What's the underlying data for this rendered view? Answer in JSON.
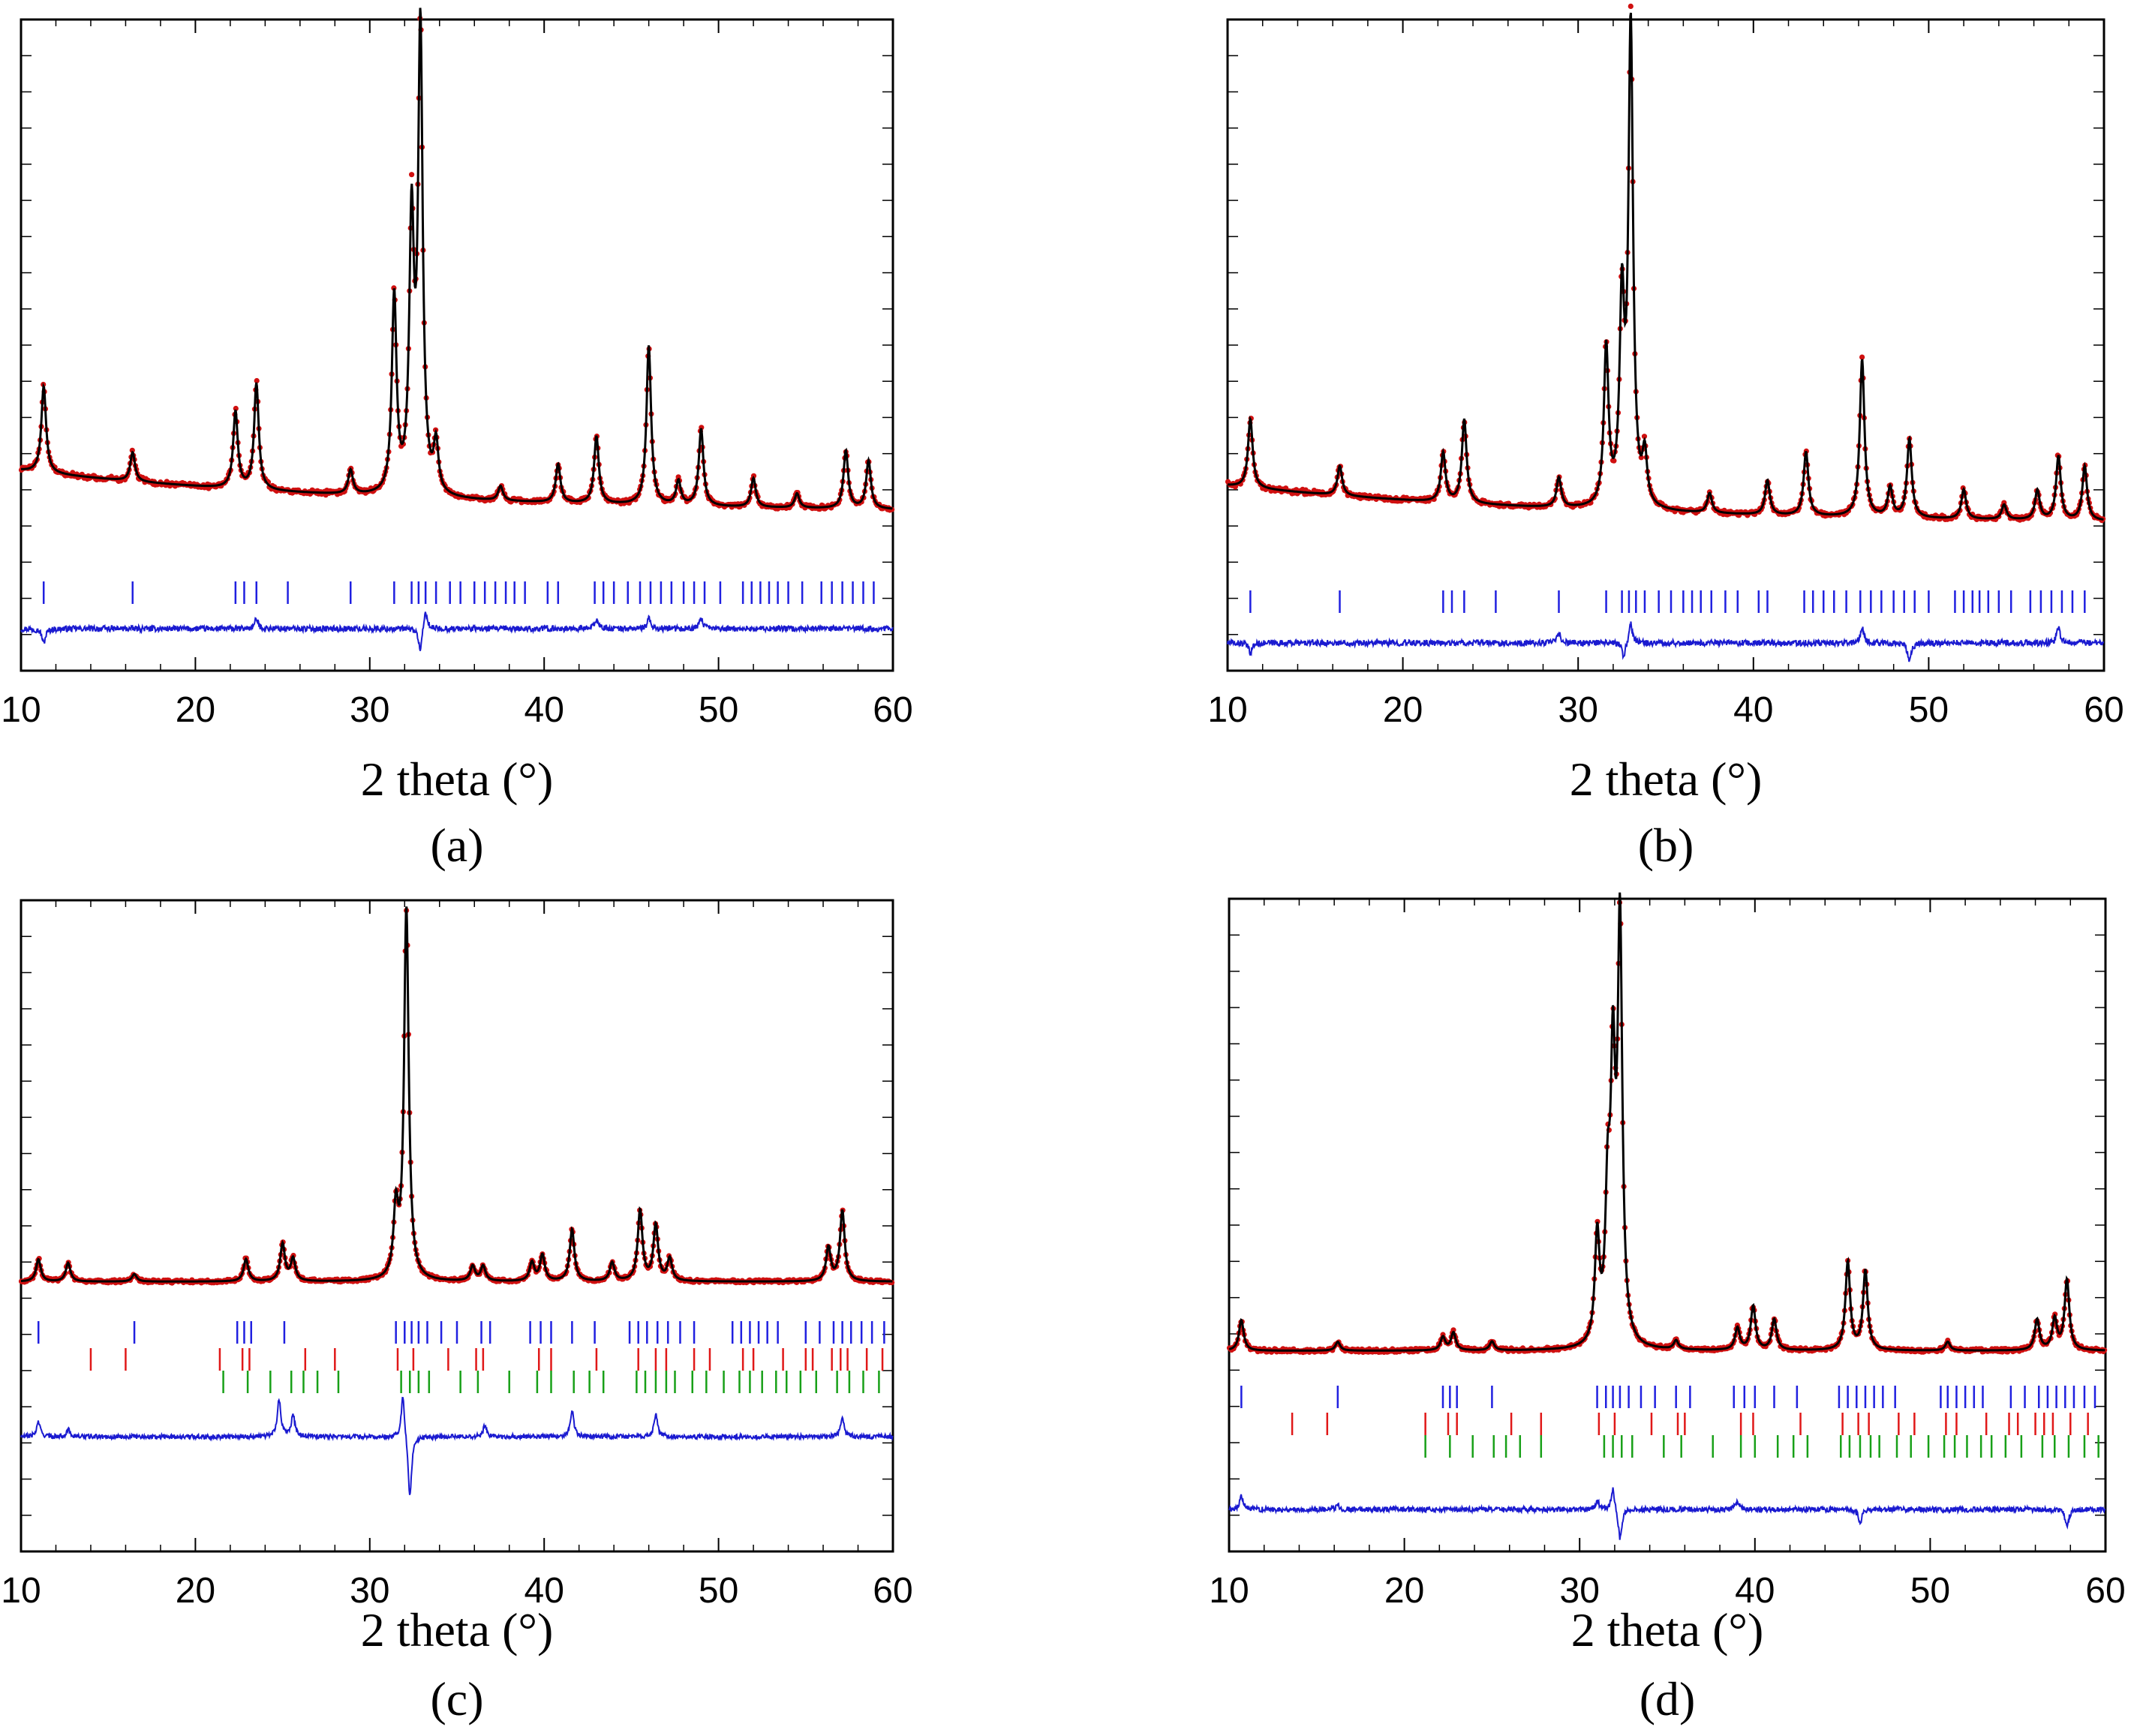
{
  "figure": {
    "colors": {
      "observed": "#d01010",
      "calculated": "#000000",
      "difference": "#1a1ad0",
      "phase1": "#2020e0",
      "phase2": "#e01818",
      "phase3": "#18a018"
    }
  },
  "chart_data": [
    {
      "panel": "a",
      "caption": "(a)",
      "type": "line",
      "xlabel": "2 theta (°)",
      "ylabel": "",
      "xlim": [
        10,
        60
      ],
      "xticks": [
        10,
        20,
        30,
        40,
        50,
        60
      ],
      "ylim": [
        -0.32,
        1.03
      ],
      "background": 0.09,
      "peaks": [
        {
          "x": 11.3,
          "h": 0.18
        },
        {
          "x": 16.4,
          "h": 0.06
        },
        {
          "x": 22.3,
          "h": 0.16
        },
        {
          "x": 23.5,
          "h": 0.22
        },
        {
          "x": 28.9,
          "h": 0.05
        },
        {
          "x": 31.4,
          "h": 0.41
        },
        {
          "x": 32.4,
          "h": 0.55
        },
        {
          "x": 32.9,
          "h": 0.96
        },
        {
          "x": 33.8,
          "h": 0.1
        },
        {
          "x": 37.5,
          "h": 0.03
        },
        {
          "x": 40.8,
          "h": 0.08
        },
        {
          "x": 43.0,
          "h": 0.14
        },
        {
          "x": 46.0,
          "h": 0.33
        },
        {
          "x": 47.7,
          "h": 0.05
        },
        {
          "x": 49.0,
          "h": 0.16
        },
        {
          "x": 52.0,
          "h": 0.06
        },
        {
          "x": 54.5,
          "h": 0.03
        },
        {
          "x": 57.3,
          "h": 0.12
        },
        {
          "x": 58.6,
          "h": 0.1
        }
      ],
      "reflection_rows": [
        {
          "phase": "phase1",
          "positions": [
            11.3,
            16.4,
            22.3,
            22.8,
            23.5,
            25.3,
            28.9,
            31.4,
            32.4,
            32.8,
            33.2,
            33.8,
            34.6,
            35.2,
            36.0,
            36.6,
            37.2,
            37.8,
            38.3,
            38.9,
            40.2,
            40.8,
            42.9,
            43.4,
            44.0,
            44.8,
            45.5,
            46.1,
            46.7,
            47.3,
            48.0,
            48.6,
            49.2,
            50.1,
            51.4,
            51.9,
            52.4,
            52.9,
            53.4,
            54.0,
            54.8,
            55.9,
            56.5,
            57.1,
            57.7,
            58.3,
            58.9
          ]
        }
      ],
      "difference_spikes": [
        {
          "x": 11.3,
          "a": -0.03
        },
        {
          "x": 23.5,
          "a": 0.02
        },
        {
          "x": 32.9,
          "a": -0.05
        },
        {
          "x": 33.2,
          "a": 0.04
        },
        {
          "x": 43.0,
          "a": 0.02
        },
        {
          "x": 46.0,
          "a": 0.02
        },
        {
          "x": 49.0,
          "a": 0.02
        }
      ]
    },
    {
      "panel": "b",
      "caption": "(b)",
      "type": "line",
      "xlabel": "2 theta (°)",
      "ylabel": "",
      "xlim": [
        10,
        60
      ],
      "xticks": [
        10,
        20,
        30,
        40,
        50,
        60
      ],
      "ylim": [
        -0.29,
        1.03
      ],
      "background": 0.08,
      "peaks": [
        {
          "x": 11.3,
          "h": 0.14
        },
        {
          "x": 16.4,
          "h": 0.06
        },
        {
          "x": 22.3,
          "h": 0.1
        },
        {
          "x": 23.5,
          "h": 0.17
        },
        {
          "x": 28.9,
          "h": 0.06
        },
        {
          "x": 31.6,
          "h": 0.32
        },
        {
          "x": 32.5,
          "h": 0.4
        },
        {
          "x": 33.0,
          "h": 0.97
        },
        {
          "x": 33.8,
          "h": 0.1
        },
        {
          "x": 37.5,
          "h": 0.04
        },
        {
          "x": 40.8,
          "h": 0.07
        },
        {
          "x": 43.0,
          "h": 0.13
        },
        {
          "x": 46.2,
          "h": 0.32
        },
        {
          "x": 47.8,
          "h": 0.06
        },
        {
          "x": 48.9,
          "h": 0.16
        },
        {
          "x": 52.0,
          "h": 0.06
        },
        {
          "x": 54.3,
          "h": 0.03
        },
        {
          "x": 56.2,
          "h": 0.06
        },
        {
          "x": 57.4,
          "h": 0.13
        },
        {
          "x": 58.9,
          "h": 0.11
        }
      ],
      "reflection_rows": [
        {
          "phase": "phase1",
          "positions": [
            11.3,
            16.4,
            22.3,
            22.8,
            23.5,
            25.3,
            28.9,
            31.6,
            32.5,
            32.9,
            33.3,
            33.8,
            34.6,
            35.3,
            36.0,
            36.5,
            37.0,
            37.6,
            38.4,
            39.1,
            40.3,
            40.8,
            42.9,
            43.4,
            44.0,
            44.6,
            45.3,
            46.1,
            46.7,
            47.3,
            48.0,
            48.6,
            49.2,
            50.0,
            51.5,
            52.0,
            52.5,
            52.9,
            53.4,
            54.0,
            54.7,
            55.8,
            56.4,
            57.0,
            57.6,
            58.2,
            58.9
          ]
        }
      ],
      "difference_spikes": [
        {
          "x": 11.3,
          "a": -0.02
        },
        {
          "x": 28.9,
          "a": 0.02
        },
        {
          "x": 32.6,
          "a": -0.03
        },
        {
          "x": 33.0,
          "a": 0.04
        },
        {
          "x": 46.2,
          "a": 0.03
        },
        {
          "x": 48.9,
          "a": -0.04
        },
        {
          "x": 57.4,
          "a": 0.03
        }
      ]
    },
    {
      "panel": "c",
      "caption": "(c)",
      "type": "line",
      "xlabel": "2 theta (°)",
      "ylabel": "",
      "xlim": [
        10,
        60
      ],
      "xticks": [
        10,
        20,
        30,
        40,
        50,
        60
      ],
      "ylim": [
        -0.72,
        1.03
      ],
      "background": 0.0,
      "peaks": [
        {
          "x": 11.0,
          "h": 0.06
        },
        {
          "x": 12.7,
          "h": 0.05
        },
        {
          "x": 16.5,
          "h": 0.02
        },
        {
          "x": 22.9,
          "h": 0.06
        },
        {
          "x": 25.0,
          "h": 0.1
        },
        {
          "x": 25.6,
          "h": 0.06
        },
        {
          "x": 31.5,
          "h": 0.18
        },
        {
          "x": 32.1,
          "h": 1.0
        },
        {
          "x": 35.9,
          "h": 0.04
        },
        {
          "x": 36.5,
          "h": 0.04
        },
        {
          "x": 39.3,
          "h": 0.05
        },
        {
          "x": 39.9,
          "h": 0.07
        },
        {
          "x": 41.6,
          "h": 0.14
        },
        {
          "x": 43.9,
          "h": 0.05
        },
        {
          "x": 45.5,
          "h": 0.19
        },
        {
          "x": 46.4,
          "h": 0.15
        },
        {
          "x": 47.2,
          "h": 0.06
        },
        {
          "x": 56.3,
          "h": 0.09
        },
        {
          "x": 57.1,
          "h": 0.19
        }
      ],
      "reflection_rows": [
        {
          "phase": "phase1",
          "positions": [
            11.0,
            16.5,
            22.4,
            22.8,
            23.2,
            25.1,
            31.5,
            32.0,
            32.4,
            32.8,
            33.3,
            34.1,
            35.0,
            36.4,
            36.9,
            39.2,
            39.8,
            40.4,
            41.6,
            42.9,
            44.9,
            45.4,
            45.9,
            46.5,
            47.1,
            47.8,
            48.6,
            50.8,
            51.3,
            51.8,
            52.3,
            52.8,
            53.4,
            55.0,
            55.8,
            56.6,
            57.1,
            57.6,
            58.2,
            58.8,
            59.5
          ]
        },
        {
          "phase": "phase2",
          "positions": [
            14.0,
            16.0,
            21.4,
            22.7,
            23.1,
            26.3,
            28.0,
            31.6,
            32.5,
            34.5,
            36.1,
            36.5,
            39.7,
            40.4,
            43.0,
            45.4,
            46.4,
            47.0,
            48.6,
            49.5,
            51.4,
            52.0,
            53.7,
            55.0,
            55.4,
            56.5,
            57.0,
            57.4,
            58.5,
            59.4
          ]
        },
        {
          "phase": "phase3",
          "positions": [
            21.6,
            23.0,
            24.3,
            25.5,
            26.2,
            27.0,
            28.2,
            31.8,
            32.3,
            32.8,
            33.4,
            35.2,
            36.2,
            38.0,
            39.6,
            40.4,
            41.7,
            42.6,
            43.4,
            45.3,
            45.8,
            46.4,
            47.0,
            47.5,
            48.5,
            49.3,
            50.3,
            51.2,
            51.8,
            52.5,
            53.3,
            53.9,
            54.7,
            55.6,
            56.8,
            57.5,
            58.3,
            59.2
          ]
        }
      ],
      "difference_spikes": [
        {
          "x": 11.0,
          "a": 0.04
        },
        {
          "x": 12.7,
          "a": 0.02
        },
        {
          "x": 24.8,
          "a": 0.1
        },
        {
          "x": 25.6,
          "a": 0.06
        },
        {
          "x": 31.9,
          "a": 0.12
        },
        {
          "x": 32.3,
          "a": -0.17
        },
        {
          "x": 36.6,
          "a": 0.03
        },
        {
          "x": 41.6,
          "a": 0.07
        },
        {
          "x": 46.4,
          "a": 0.06
        },
        {
          "x": 57.1,
          "a": 0.05
        }
      ]
    },
    {
      "panel": "d",
      "caption": "(d)",
      "type": "line",
      "xlabel": "2 theta (°)",
      "ylabel": "",
      "xlim": [
        10,
        60
      ],
      "xticks": [
        10,
        20,
        30,
        40,
        50,
        60
      ],
      "ylim": [
        -0.45,
        1.03
      ],
      "background": 0.0,
      "peaks": [
        {
          "x": 10.7,
          "h": 0.07
        },
        {
          "x": 16.2,
          "h": 0.02
        },
        {
          "x": 22.2,
          "h": 0.03
        },
        {
          "x": 22.8,
          "h": 0.04
        },
        {
          "x": 25.0,
          "h": 0.02
        },
        {
          "x": 31.0,
          "h": 0.24
        },
        {
          "x": 31.6,
          "h": 0.3
        },
        {
          "x": 31.9,
          "h": 0.58
        },
        {
          "x": 32.3,
          "h": 0.94
        },
        {
          "x": 35.5,
          "h": 0.02
        },
        {
          "x": 39.0,
          "h": 0.05
        },
        {
          "x": 39.9,
          "h": 0.1
        },
        {
          "x": 41.1,
          "h": 0.07
        },
        {
          "x": 45.3,
          "h": 0.2
        },
        {
          "x": 46.3,
          "h": 0.18
        },
        {
          "x": 51.0,
          "h": 0.02
        },
        {
          "x": 56.1,
          "h": 0.07
        },
        {
          "x": 57.1,
          "h": 0.07
        },
        {
          "x": 57.8,
          "h": 0.16
        }
      ],
      "reflection_rows": [
        {
          "phase": "phase1",
          "positions": [
            10.7,
            16.2,
            22.2,
            22.6,
            23.0,
            25.0,
            31.0,
            31.5,
            31.9,
            32.3,
            32.8,
            33.5,
            34.3,
            35.5,
            36.3,
            38.8,
            39.4,
            40.0,
            41.1,
            42.4,
            44.8,
            45.3,
            45.8,
            46.3,
            46.8,
            47.3,
            48.0,
            50.6,
            51.0,
            51.5,
            52.0,
            52.5,
            53.0,
            54.6,
            55.4,
            56.2,
            56.7,
            57.2,
            57.7,
            58.2,
            58.8,
            59.4
          ]
        },
        {
          "phase": "phase2",
          "positions": [
            13.6,
            15.6,
            21.2,
            22.5,
            23.0,
            26.1,
            27.8,
            31.1,
            32.0,
            34.1,
            35.6,
            36.0,
            39.2,
            39.9,
            42.6,
            45.0,
            45.9,
            46.5,
            48.2,
            49.1,
            50.9,
            51.5,
            53.2,
            54.5,
            55.0,
            56.0,
            56.5,
            57.0,
            58.0,
            59.0
          ]
        },
        {
          "phase": "phase3",
          "positions": [
            21.2,
            22.6,
            23.9,
            25.1,
            25.8,
            26.6,
            27.8,
            31.4,
            31.9,
            32.4,
            33.0,
            34.8,
            35.8,
            37.6,
            39.2,
            40.0,
            41.3,
            42.2,
            43.0,
            44.9,
            45.4,
            46.0,
            46.6,
            47.1,
            48.1,
            48.9,
            49.9,
            50.8,
            51.4,
            52.1,
            52.9,
            53.5,
            54.3,
            55.2,
            56.4,
            57.1,
            57.9,
            58.8,
            59.6
          ]
        }
      ],
      "difference_spikes": [
        {
          "x": 10.7,
          "a": 0.03
        },
        {
          "x": 16.2,
          "a": 0.01
        },
        {
          "x": 31.0,
          "a": 0.02
        },
        {
          "x": 31.9,
          "a": 0.05
        },
        {
          "x": 32.3,
          "a": -0.07
        },
        {
          "x": 39.0,
          "a": 0.02
        },
        {
          "x": 46.0,
          "a": -0.03
        },
        {
          "x": 57.8,
          "a": -0.04
        }
      ]
    }
  ]
}
